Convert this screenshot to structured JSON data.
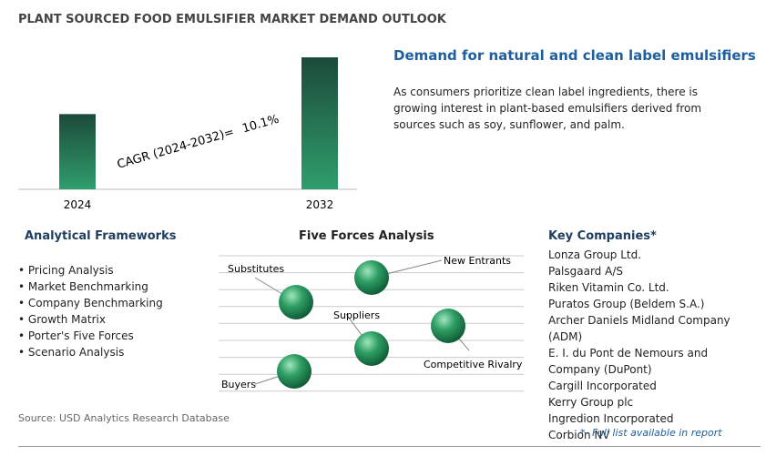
{
  "title": "PLANT SOURCED FOOD EMULSIFIER MARKET DEMAND OUTLOOK",
  "chart_data": {
    "type": "bar",
    "categories": [
      "2024",
      "2032"
    ],
    "values": [
      57,
      100
    ],
    "ylim": [
      0,
      100
    ],
    "annotation": "CAGR (2024-2032)=",
    "annotation_value": "10.1%"
  },
  "highlight": {
    "heading": "Demand for natural and clean label emulsifiers",
    "text": "As consumers prioritize clean label ingredients, there is growing interest in plant-based emulsifiers derived from sources such as soy, sunflower, and palm."
  },
  "frameworks": {
    "heading": "Analytical Frameworks",
    "items": [
      "Pricing Analysis",
      "Market Benchmarking",
      "Company Benchmarking",
      "Growth Matrix",
      "Porter's Five Forces",
      "Scenario Analysis"
    ]
  },
  "five_forces": {
    "heading": "Five Forces Analysis",
    "labels": [
      "Substitutes",
      "New Entrants",
      "Suppliers",
      "Competitive Rivalry",
      "Buyers"
    ]
  },
  "companies": {
    "heading": "Key Companies*",
    "items": [
      "Lonza Group Ltd.",
      "Palsgaard A/S",
      "Riken Vitamin Co. Ltd.",
      "Puratos Group (Beldem S.A.)",
      "Archer Daniels Midland Company (ADM)",
      "E. I. du Pont de Nemours and Company (DuPont)",
      "Cargill Incorporated",
      "Kerry Group plc",
      "Ingredion Incorporated",
      "Corbion NV"
    ],
    "footnote": "*- Full list available in report"
  },
  "source": "Source: USD Analytics Research Database"
}
